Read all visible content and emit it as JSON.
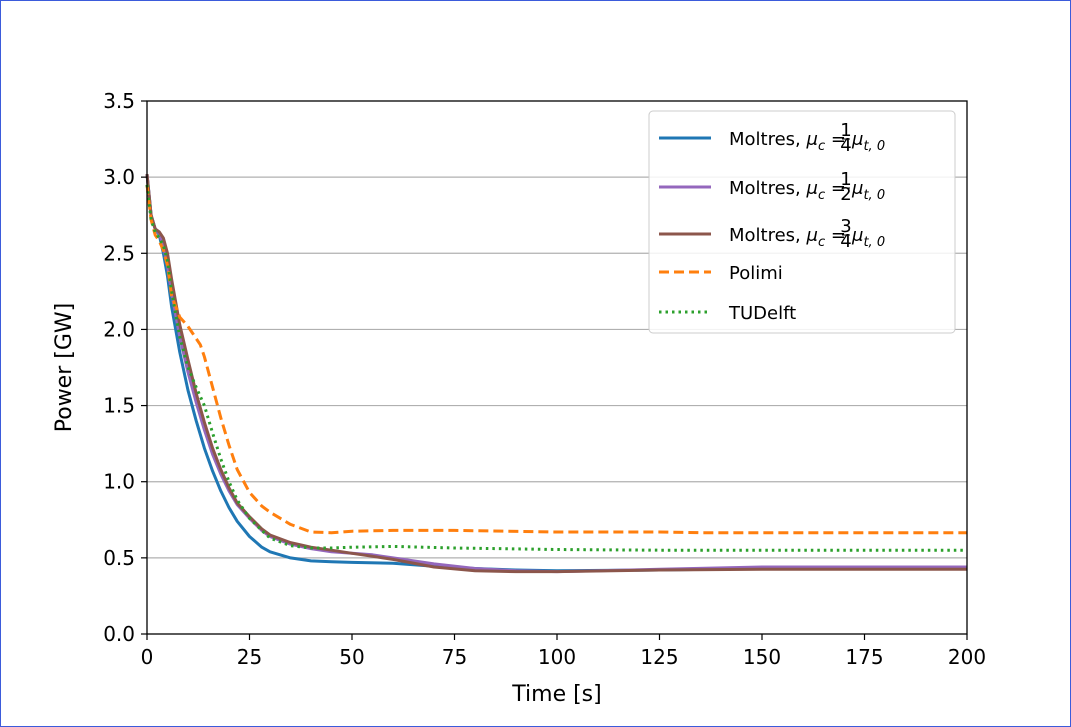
{
  "chart_data": {
    "type": "line",
    "xlabel": "Time [s]",
    "ylabel": "Power [GW]",
    "xlim": [
      0,
      200
    ],
    "ylim": [
      0.0,
      3.5
    ],
    "xticks": [
      0,
      25,
      50,
      75,
      100,
      125,
      150,
      175,
      200
    ],
    "yticks": [
      0.0,
      0.5,
      1.0,
      1.5,
      2.0,
      2.5,
      3.0,
      3.5
    ],
    "xtick_labels": [
      "0",
      "25",
      "50",
      "75",
      "100",
      "125",
      "150",
      "175",
      "200"
    ],
    "ytick_labels": [
      "0.0",
      "0.5",
      "1.0",
      "1.5",
      "2.0",
      "2.5",
      "3.0",
      "3.5"
    ],
    "grid": "horizontal",
    "legend_position": "top-right",
    "series": [
      {
        "name": "Moltres, μc = 1/4 μt,0",
        "legend": {
          "prefix": "Moltres, ",
          "mu": "μ",
          "sub_c": "c",
          "eq": " = ",
          "num": "1",
          "den": "4",
          "sub_t": "t, 0"
        },
        "color": "#1f77b4",
        "dash": "solid",
        "points": [
          [
            0,
            3.02
          ],
          [
            1,
            2.75
          ],
          [
            2,
            2.66
          ],
          [
            3,
            2.62
          ],
          [
            4,
            2.5
          ],
          [
            5,
            2.35
          ],
          [
            6,
            2.15
          ],
          [
            8,
            1.85
          ],
          [
            10,
            1.6
          ],
          [
            12,
            1.4
          ],
          [
            14,
            1.22
          ],
          [
            16,
            1.07
          ],
          [
            18,
            0.94
          ],
          [
            20,
            0.83
          ],
          [
            22,
            0.74
          ],
          [
            25,
            0.64
          ],
          [
            28,
            0.57
          ],
          [
            30,
            0.54
          ],
          [
            35,
            0.5
          ],
          [
            40,
            0.48
          ],
          [
            45,
            0.475
          ],
          [
            50,
            0.47
          ],
          [
            60,
            0.465
          ],
          [
            70,
            0.445
          ],
          [
            80,
            0.43
          ],
          [
            90,
            0.42
          ],
          [
            100,
            0.415
          ],
          [
            125,
            0.42
          ],
          [
            150,
            0.43
          ],
          [
            175,
            0.43
          ],
          [
            200,
            0.43
          ]
        ]
      },
      {
        "name": "Moltres, μc = 1/2 μt,0",
        "legend": {
          "prefix": "Moltres, ",
          "mu": "μ",
          "sub_c": "c",
          "eq": " = ",
          "num": "1",
          "den": "2",
          "sub_t": "t, 0"
        },
        "color": "#9467bd",
        "dash": "solid",
        "points": [
          [
            0,
            3.02
          ],
          [
            1,
            2.75
          ],
          [
            2,
            2.66
          ],
          [
            3,
            2.63
          ],
          [
            4,
            2.55
          ],
          [
            5,
            2.42
          ],
          [
            6,
            2.24
          ],
          [
            8,
            1.95
          ],
          [
            10,
            1.72
          ],
          [
            12,
            1.52
          ],
          [
            14,
            1.34
          ],
          [
            16,
            1.18
          ],
          [
            18,
            1.05
          ],
          [
            20,
            0.94
          ],
          [
            22,
            0.85
          ],
          [
            25,
            0.76
          ],
          [
            28,
            0.68
          ],
          [
            30,
            0.64
          ],
          [
            35,
            0.59
          ],
          [
            40,
            0.56
          ],
          [
            45,
            0.54
          ],
          [
            50,
            0.53
          ],
          [
            55,
            0.52
          ],
          [
            60,
            0.5
          ],
          [
            70,
            0.46
          ],
          [
            80,
            0.43
          ],
          [
            90,
            0.415
          ],
          [
            100,
            0.41
          ],
          [
            125,
            0.425
          ],
          [
            150,
            0.44
          ],
          [
            175,
            0.44
          ],
          [
            200,
            0.44
          ]
        ]
      },
      {
        "name": "Moltres, μc = 3/4 μt,0",
        "legend": {
          "prefix": "Moltres, ",
          "mu": "μ",
          "sub_c": "c",
          "eq": " = ",
          "num": "3",
          "den": "4",
          "sub_t": "t, 0"
        },
        "color": "#8c564b",
        "dash": "solid",
        "points": [
          [
            0,
            3.02
          ],
          [
            1,
            2.75
          ],
          [
            2,
            2.66
          ],
          [
            3,
            2.64
          ],
          [
            4,
            2.6
          ],
          [
            5,
            2.5
          ],
          [
            6,
            2.33
          ],
          [
            8,
            2.03
          ],
          [
            10,
            1.8
          ],
          [
            12,
            1.58
          ],
          [
            14,
            1.39
          ],
          [
            16,
            1.22
          ],
          [
            18,
            1.08
          ],
          [
            20,
            0.96
          ],
          [
            22,
            0.86
          ],
          [
            25,
            0.77
          ],
          [
            28,
            0.69
          ],
          [
            30,
            0.65
          ],
          [
            35,
            0.6
          ],
          [
            40,
            0.57
          ],
          [
            45,
            0.55
          ],
          [
            50,
            0.53
          ],
          [
            55,
            0.51
          ],
          [
            60,
            0.49
          ],
          [
            70,
            0.44
          ],
          [
            80,
            0.415
          ],
          [
            90,
            0.41
          ],
          [
            100,
            0.41
          ],
          [
            125,
            0.42
          ],
          [
            150,
            0.425
          ],
          [
            175,
            0.425
          ],
          [
            200,
            0.425
          ]
        ]
      },
      {
        "name": "Polimi",
        "color": "#ff7f0e",
        "dash": "dashed",
        "points": [
          [
            0,
            2.95
          ],
          [
            1,
            2.72
          ],
          [
            2,
            2.62
          ],
          [
            3,
            2.58
          ],
          [
            4,
            2.52
          ],
          [
            5,
            2.42
          ],
          [
            6,
            2.22
          ],
          [
            8,
            2.08
          ],
          [
            10,
            2.02
          ],
          [
            11,
            1.98
          ],
          [
            13,
            1.9
          ],
          [
            14,
            1.82
          ],
          [
            16,
            1.62
          ],
          [
            18,
            1.42
          ],
          [
            20,
            1.24
          ],
          [
            22,
            1.08
          ],
          [
            25,
            0.93
          ],
          [
            28,
            0.84
          ],
          [
            30,
            0.8
          ],
          [
            35,
            0.72
          ],
          [
            40,
            0.67
          ],
          [
            45,
            0.665
          ],
          [
            50,
            0.675
          ],
          [
            60,
            0.68
          ],
          [
            75,
            0.68
          ],
          [
            100,
            0.67
          ],
          [
            125,
            0.67
          ],
          [
            135,
            0.665
          ],
          [
            150,
            0.665
          ],
          [
            175,
            0.665
          ],
          [
            200,
            0.665
          ]
        ]
      },
      {
        "name": "TUDelft",
        "color": "#2ca02c",
        "dash": "dotted",
        "points": [
          [
            0,
            2.95
          ],
          [
            1,
            2.72
          ],
          [
            2,
            2.64
          ],
          [
            3,
            2.6
          ],
          [
            4,
            2.55
          ],
          [
            5,
            2.45
          ],
          [
            6,
            2.25
          ],
          [
            8,
            1.95
          ],
          [
            10,
            1.75
          ],
          [
            12,
            1.62
          ],
          [
            14,
            1.5
          ],
          [
            16,
            1.32
          ],
          [
            18,
            1.15
          ],
          [
            20,
            1.0
          ],
          [
            22,
            0.88
          ],
          [
            25,
            0.76
          ],
          [
            28,
            0.68
          ],
          [
            30,
            0.63
          ],
          [
            35,
            0.58
          ],
          [
            40,
            0.565
          ],
          [
            45,
            0.565
          ],
          [
            50,
            0.57
          ],
          [
            60,
            0.575
          ],
          [
            75,
            0.565
          ],
          [
            100,
            0.555
          ],
          [
            125,
            0.55
          ],
          [
            150,
            0.55
          ],
          [
            175,
            0.55
          ],
          [
            200,
            0.55
          ]
        ]
      }
    ]
  }
}
